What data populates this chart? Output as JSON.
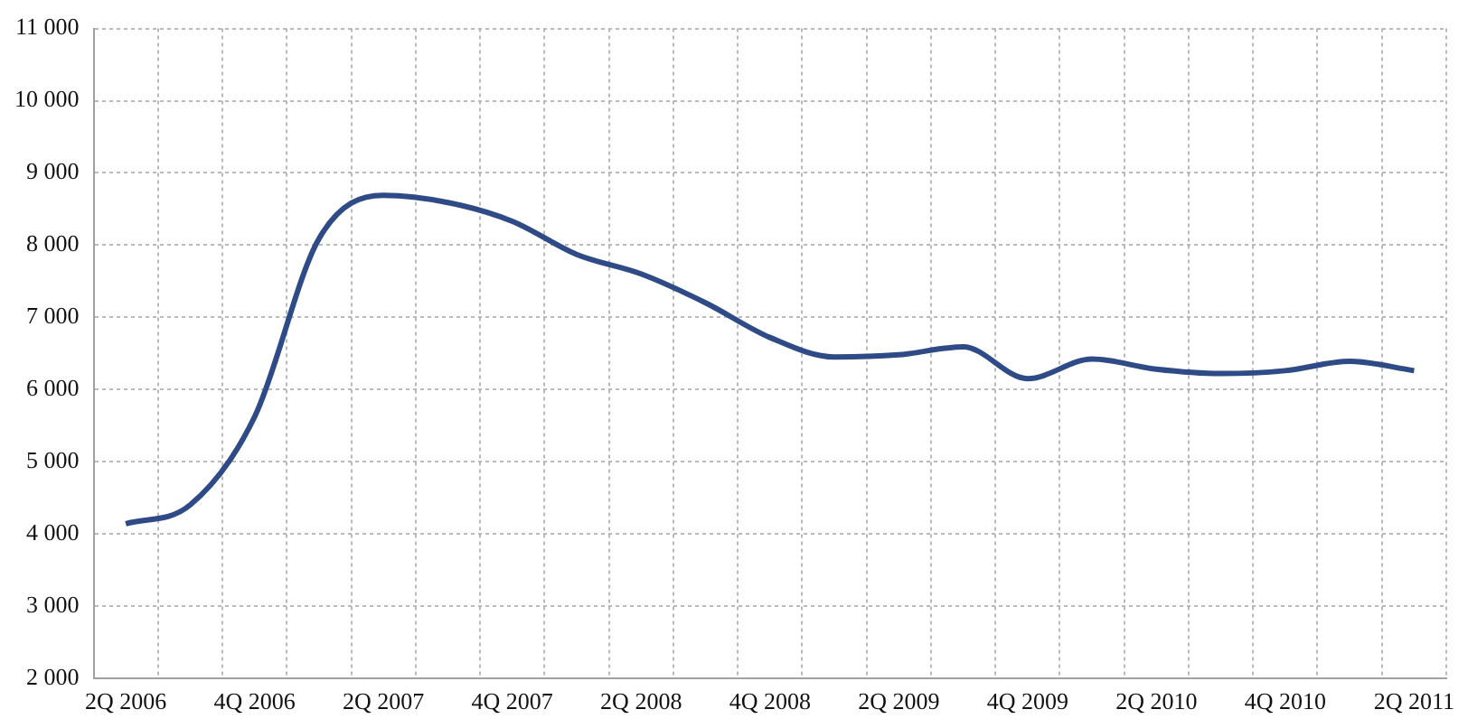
{
  "chart_data": {
    "type": "line",
    "categories": [
      "2Q 2006",
      null,
      "4Q 2006",
      null,
      "2Q 2007",
      null,
      "4Q 2007",
      null,
      "2Q 2008",
      null,
      "4Q 2008",
      null,
      "2Q 2009",
      null,
      "4Q 2009",
      null,
      "2Q 2010",
      null,
      "4Q 2010",
      null,
      "2Q 2011"
    ],
    "series": [
      {
        "color": "#2e4a87",
        "values": [
          4140,
          4400,
          5620,
          8090,
          8690,
          8590,
          8330,
          7870,
          7600,
          7200,
          6720,
          6450,
          6480,
          6590,
          6150,
          6420,
          6280,
          6220,
          6260,
          6390,
          6260
        ]
      }
    ],
    "ylim": [
      2000,
      11000
    ],
    "yticks": [
      {
        "value": 2000,
        "label": "2 000"
      },
      {
        "value": 3000,
        "label": "3 000"
      },
      {
        "value": 4000,
        "label": "4 000"
      },
      {
        "value": 5000,
        "label": "5 000"
      },
      {
        "value": 6000,
        "label": "6 000"
      },
      {
        "value": 7000,
        "label": "7 000"
      },
      {
        "value": 8000,
        "label": "8 000"
      },
      {
        "value": 9000,
        "label": "9 000"
      },
      {
        "value": 10000,
        "label": "10 000"
      },
      {
        "value": 11000,
        "label": "11 000"
      }
    ],
    "grid": true
  }
}
